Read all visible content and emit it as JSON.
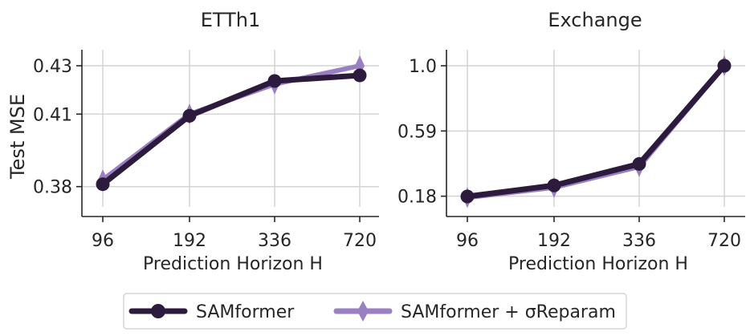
{
  "chart_data": [
    {
      "type": "line",
      "title": "ETTh1",
      "xlabel": "Prediction Horizon H",
      "ylabel": "Test MSE",
      "categories": [
        "96",
        "192",
        "336",
        "720"
      ],
      "yticks": [
        "0.38",
        "0.41",
        "0.43"
      ],
      "ytick_values": [
        0.38,
        0.41,
        0.43
      ],
      "ylim": [
        0.3736,
        0.43
      ],
      "grid": true,
      "series": [
        {
          "name": "SAMformer",
          "values": [
            0.381,
            0.4093,
            0.4237,
            0.426
          ],
          "marker": "circle"
        },
        {
          "name": "SAMformer + σReparam",
          "values": [
            0.3828,
            0.41,
            0.4224,
            0.43
          ],
          "marker": "diamond"
        }
      ]
    },
    {
      "type": "line",
      "title": "Exchange",
      "xlabel": "Prediction Horizon H",
      "ylabel": "",
      "categories": [
        "96",
        "192",
        "336",
        "720"
      ],
      "yticks": [
        "0.18",
        "0.59",
        "1.0"
      ],
      "ytick_values": [
        0.18,
        0.59,
        1.0
      ],
      "ylim": [
        0.143,
        1.0
      ],
      "grid": true,
      "series": [
        {
          "name": "SAMformer",
          "values": [
            0.1783,
            0.2478,
            0.3827,
            1.0
          ],
          "marker": "circle"
        },
        {
          "name": "SAMformer + σReparam",
          "values": [
            0.1714,
            0.2348,
            0.3653,
            1.0
          ],
          "marker": "diamond"
        }
      ]
    }
  ],
  "legend": {
    "position": "bottom-center",
    "items": [
      "SAMformer",
      "SAMformer + σReparam"
    ]
  },
  "colors": {
    "series1": "#2d1b3d",
    "series2": "#9a7fc3",
    "grid": "#d4d4d4",
    "axis": "#262626"
  }
}
